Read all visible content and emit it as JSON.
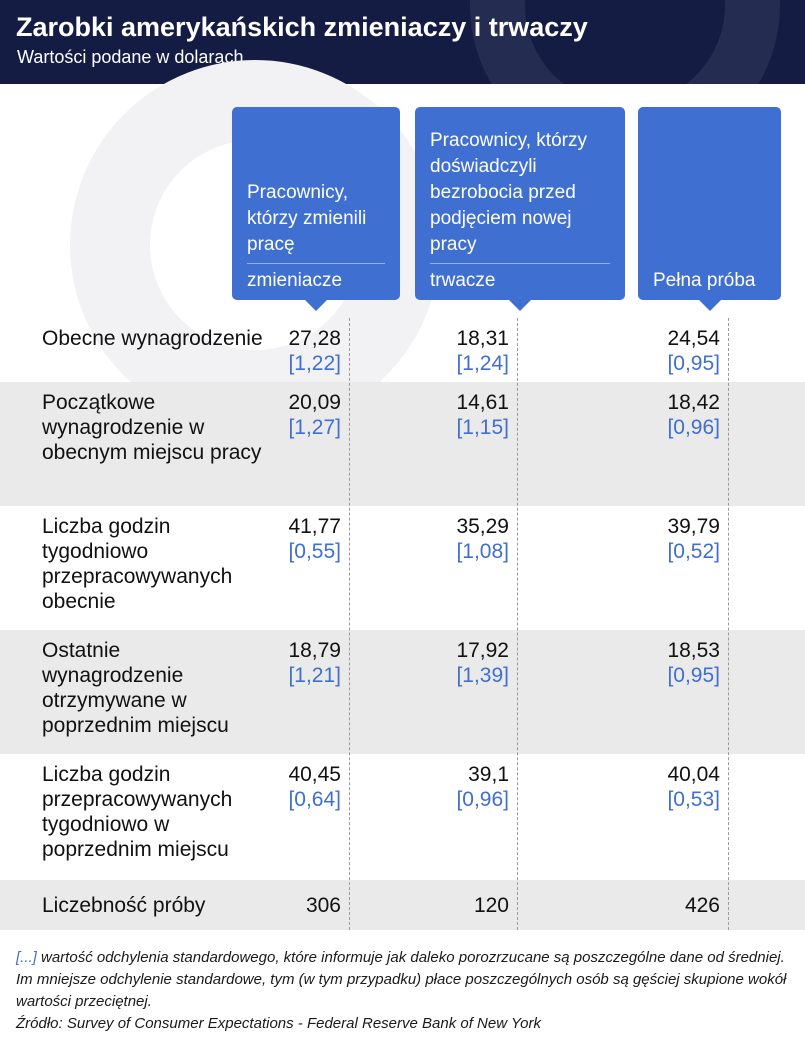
{
  "header": {
    "title": "Zarobki amerykańskich zmieniaczy i trwaczy",
    "subtitle": "Wartości podane w dolarach"
  },
  "chart_data": {
    "type": "table",
    "title": "Zarobki amerykańskich zmieniaczy i trwaczy",
    "subtitle": "Wartości podane w dolarach",
    "columns": [
      {
        "title": "Pracownicy, którzy zmienili pracę",
        "short": "zmieniacze"
      },
      {
        "title": "Pracownicy, którzy doświadczyli bezrobocia przed podjęciem nowej pracy",
        "short": "trwacze"
      },
      {
        "title": "",
        "short": "Pełna próba"
      }
    ],
    "rows": [
      {
        "label": "Obecne wynagrodzenie",
        "values": [
          "27,28",
          "18,31",
          "24,54"
        ],
        "sd": [
          "[1,22]",
          "[1,24]",
          "[0,95]"
        ]
      },
      {
        "label": "Początkowe wynagrodzenie w obecnym miejscu pracy",
        "values": [
          "20,09",
          "14,61",
          "18,42"
        ],
        "sd": [
          "[1,27]",
          "[1,15]",
          "[0,96]"
        ]
      },
      {
        "label": "Liczba godzin tygodniowo przepracowywanych obecnie",
        "values": [
          "41,77",
          "35,29",
          "39,79"
        ],
        "sd": [
          "[0,55]",
          "[1,08]",
          "[0,52]"
        ]
      },
      {
        "label": "Ostatnie wynagrodzenie otrzymywane w poprzednim miejscu",
        "values": [
          "18,79",
          "17,92",
          "18,53"
        ],
        "sd": [
          "[1,21]",
          "[1,39]",
          "[0,95]"
        ]
      },
      {
        "label": "Liczba godzin przepracowywanych tygodniowo w poprzednim miejscu",
        "values": [
          "40,45",
          "39,1",
          "40,04"
        ],
        "sd": [
          "[0,64]",
          "[0,96]",
          "[0,53]"
        ]
      },
      {
        "label": "Liczebność próby",
        "values": [
          "306",
          "120",
          "426"
        ],
        "sd": [
          "",
          "",
          ""
        ]
      }
    ]
  },
  "footnote": {
    "marker": "[...]",
    "text": " wartość odchylenia standardowego, które informuje jak daleko porozrzucane są poszczególne dane od średniej. Im mniejsze odchylenie standardowe, tym (w tym przypadku) płace poszczególnych osób są gęściej skupione wokół wartości przeciętnej.",
    "source": "Źródło: Survey of Consumer Expectations - Federal Reserve Bank of New York"
  },
  "colors": {
    "header_bg": "#151c44",
    "accent_blue": "#3f6fd1",
    "row_shade": "#eaeaea"
  }
}
